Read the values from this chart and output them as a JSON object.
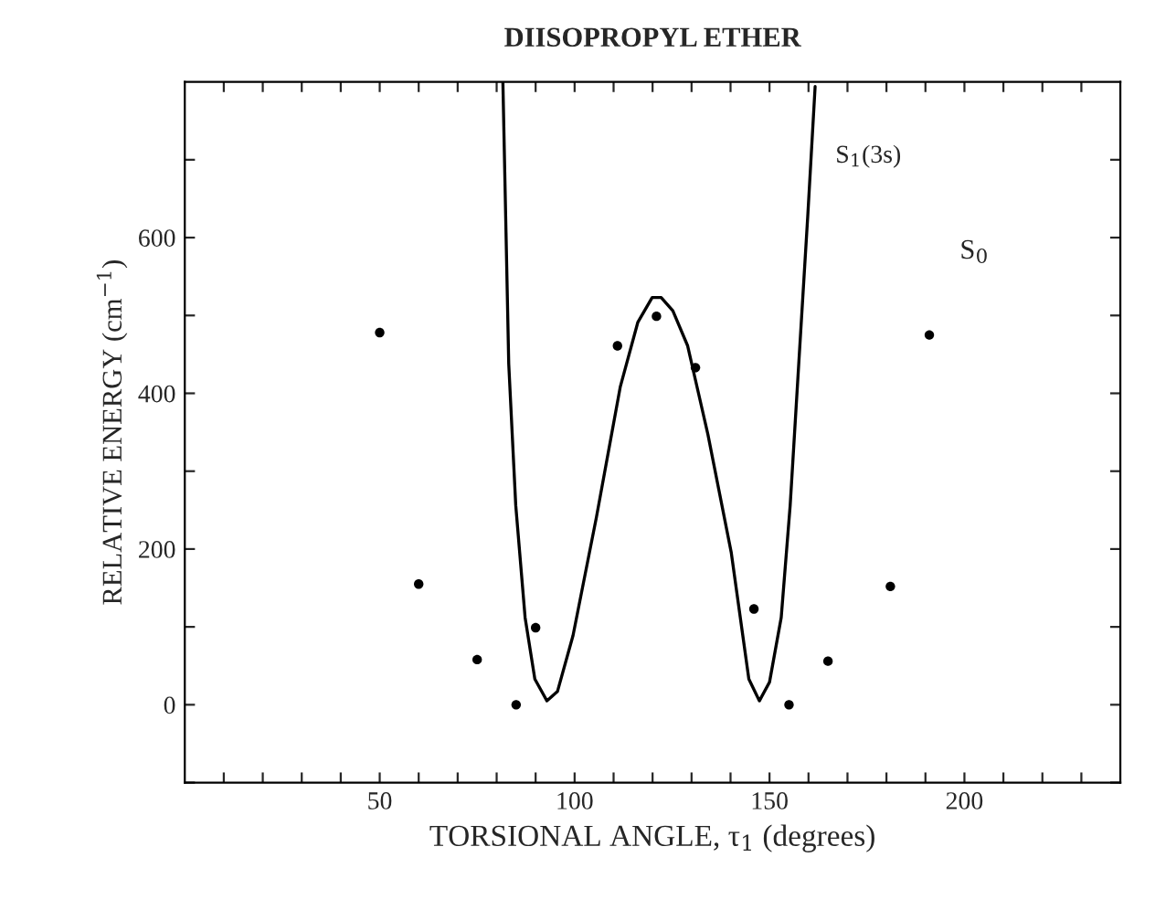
{
  "chart_data": {
    "type": "scatter",
    "title": "DIISOPROPYL ETHER",
    "xlabel": "TORSIONAL ANGLE, τ$_{1}$ (degrees)",
    "ylabel": "RELATIVE ENERGY (cm$^{−1}$)",
    "xlim": [
      0,
      240
    ],
    "ylim": [
      -100,
      800
    ],
    "xticks": [
      {
        "value": 10,
        "label": null
      },
      {
        "value": 20,
        "label": null
      },
      {
        "value": 30,
        "label": null
      },
      {
        "value": 40,
        "label": null
      },
      50,
      {
        "value": 60,
        "label": null
      },
      {
        "value": 70,
        "label": null
      },
      {
        "value": 80,
        "label": null
      },
      {
        "value": 90,
        "label": null
      },
      100,
      {
        "value": 110,
        "label": null
      },
      {
        "value": 120,
        "label": null
      },
      {
        "value": 130,
        "label": null
      },
      {
        "value": 140,
        "label": null
      },
      150,
      {
        "value": 160,
        "label": null
      },
      {
        "value": 170,
        "label": null
      },
      {
        "value": 180,
        "label": null
      },
      {
        "value": 190,
        "label": null
      },
      200,
      {
        "value": 210,
        "label": null
      },
      {
        "value": 220,
        "label": null
      },
      {
        "value": 230,
        "label": null
      }
    ],
    "yticks": [
      {
        "value": -100,
        "label": null
      },
      0,
      {
        "value": 100,
        "label": null
      },
      200,
      {
        "value": 300,
        "label": null
      },
      400,
      {
        "value": 500,
        "label": null
      },
      600,
      {
        "value": 700,
        "label": null
      }
    ],
    "grid": false,
    "legend": false,
    "series": [
      {
        "name": "S$_{1}$(3s)",
        "type": "line",
        "color": "#000000",
        "marker": "none",
        "line_style": "solid",
        "x": [
          81.6,
          83.1,
          84.9,
          87.3,
          89.8,
          92.9,
          95.6,
          99.6,
          105.6,
          111.7,
          116.2,
          119.9,
          122.2,
          125.2,
          129,
          134.2,
          140.2,
          144.7,
          147.4,
          150,
          153,
          155.3,
          157.5,
          159.8,
          161.7
        ],
        "values": [
          800,
          438,
          256,
          112,
          33,
          5,
          17,
          89,
          241,
          408,
          491,
          523,
          523,
          506,
          461,
          347,
          195,
          33,
          5,
          29,
          112,
          256,
          438,
          627,
          794
        ]
      },
      {
        "name": "S$_{0}$",
        "color": "#000000",
        "marker": "circle",
        "x": [
          50,
          60,
          75,
          85,
          90,
          111,
          121,
          131,
          146,
          155,
          165,
          181,
          191
        ],
        "values": [
          478,
          155,
          58,
          0,
          99,
          461,
          499,
          433,
          123,
          0,
          56,
          152,
          475
        ]
      }
    ]
  }
}
